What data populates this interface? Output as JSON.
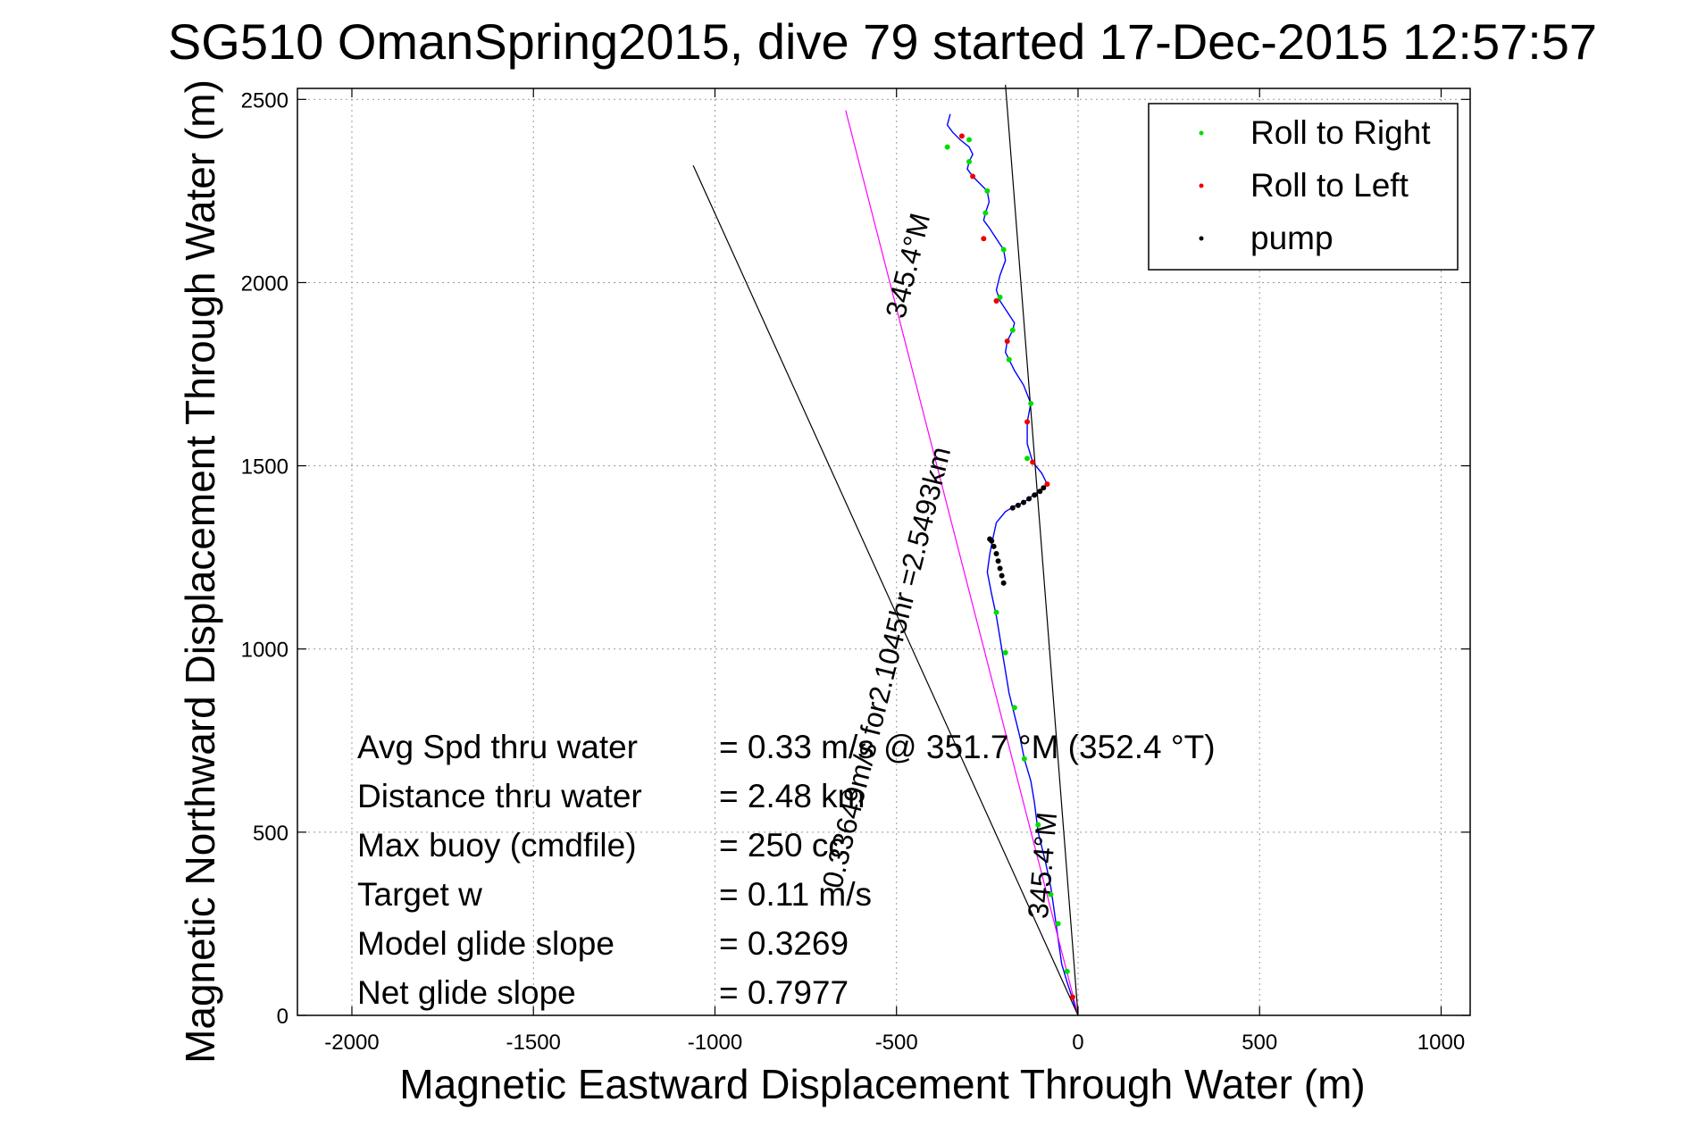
{
  "chart_data": {
    "type": "line",
    "title": "SG510 OmanSpring2015, dive 79 started 17-Dec-2015 12:57:57",
    "xlabel": "Magnetic Eastward Displacement Through Water (m)",
    "ylabel": "Magnetic Northward Displacement Through Water (m)",
    "xlim": [
      -2150,
      1080
    ],
    "ylim": [
      0,
      2530
    ],
    "xticks": [
      -2000,
      -1500,
      -1000,
      -500,
      0,
      500,
      1000
    ],
    "yticks": [
      0,
      500,
      1000,
      1500,
      2000,
      2500
    ],
    "xtick_labels": [
      "-2000",
      "-1500",
      "-1000",
      "-500",
      "0",
      "500",
      "1000"
    ],
    "ytick_labels": [
      "0",
      "500",
      "1000",
      "1500",
      "2000",
      "2500"
    ],
    "grid": true,
    "legend_position": "top-right",
    "legend": [
      {
        "label": "Roll to Right",
        "color": "#00dd00"
      },
      {
        "label": "Roll to Left",
        "color": "#ee0000"
      },
      {
        "label": "pump",
        "color": "#000000"
      }
    ],
    "series": [
      {
        "name": "",
        "color": "#0000ff",
        "x": [
          0,
          -15,
          -30,
          -45,
          -55,
          -65,
          -75,
          -90,
          -110,
          -120,
          -130,
          -148,
          -160,
          -175,
          -190,
          -200,
          -210,
          -225,
          -238,
          -250,
          -243,
          -235,
          -225,
          -200,
          -175,
          -150,
          -130,
          -110,
          -95,
          -85,
          -100,
          -125,
          -140,
          -140,
          -130,
          -150,
          -175,
          -190,
          -200,
          -195,
          -180,
          -175,
          -195,
          -215,
          -225,
          -215,
          -200,
          -205,
          -225,
          -245,
          -260,
          -255,
          -245,
          -250,
          -270,
          -290,
          -305,
          -300,
          -290,
          -300,
          -325,
          -345,
          -360,
          -352
        ],
        "y": [
          0,
          45,
          90,
          140,
          210,
          280,
          350,
          420,
          500,
          580,
          640,
          700,
          760,
          820,
          880,
          940,
          1000,
          1090,
          1150,
          1210,
          1260,
          1300,
          1345,
          1375,
          1390,
          1400,
          1415,
          1430,
          1440,
          1450,
          1480,
          1510,
          1560,
          1620,
          1670,
          1720,
          1760,
          1790,
          1810,
          1840,
          1870,
          1890,
          1920,
          1950,
          1980,
          2020,
          2060,
          2090,
          2120,
          2150,
          2170,
          2190,
          2220,
          2250,
          2270,
          2290,
          2310,
          2330,
          2350,
          2370,
          2390,
          2410,
          2430,
          2460
        ]
      },
      {
        "name": "",
        "color": "#ff00ff",
        "x": [
          0,
          -640
        ],
        "y": [
          0,
          2470
        ]
      },
      {
        "name": "",
        "color": "#000000",
        "x": [
          0,
          -1060
        ],
        "y": [
          0,
          2320
        ]
      },
      {
        "name": "",
        "color": "#000000",
        "x": [
          0,
          -200
        ],
        "y": [
          0,
          2540
        ]
      }
    ],
    "markers": {
      "roll_right": {
        "x": [
          -30,
          -55,
          -75,
          -110,
          -148,
          -175,
          -200,
          -225,
          -243,
          -140,
          -130,
          -190,
          -180,
          -215,
          -205,
          -255,
          -250,
          -300,
          -300,
          -360
        ],
        "y": [
          120,
          250,
          330,
          520,
          700,
          840,
          990,
          1100,
          1300,
          1520,
          1670,
          1790,
          1870,
          1960,
          2090,
          2190,
          2250,
          2330,
          2390,
          2370
        ]
      },
      "roll_left": {
        "x": [
          -15,
          -85,
          -125,
          -140,
          -195,
          -225,
          -260,
          -290,
          -320
        ],
        "y": [
          50,
          1450,
          1510,
          1620,
          1840,
          1950,
          2120,
          2290,
          2400
        ]
      },
      "pump": {
        "x": [
          -205,
          -210,
          -215,
          -220,
          -225,
          -232,
          -238,
          -243,
          -180,
          -165,
          -150,
          -135,
          -120,
          -105,
          -95
        ],
        "y": [
          1180,
          1200,
          1220,
          1240,
          1260,
          1280,
          1295,
          1300,
          1385,
          1392,
          1400,
          1410,
          1420,
          1430,
          1440
        ]
      }
    },
    "annotations": {
      "heading_upper": "345.4°M",
      "transit": "0.33649m/s for2.1045hr =2.5493km",
      "heading_lower": "345.4°M",
      "stats": [
        {
          "label": "Avg Spd thru water",
          "value": "=  0.33 m/s @ 351.7 °M (352.4 °T)"
        },
        {
          "label": "Distance thru water",
          "value": "=  2.48 km"
        },
        {
          "label": "Max buoy (cmdfile)",
          "value": "= 250 cc"
        },
        {
          "label": "Target w",
          "value": "= 0.11 m/s"
        },
        {
          "label": "Model glide slope",
          "value": "= 0.3269"
        },
        {
          "label": "Net glide slope",
          "value": "= 0.7977"
        }
      ]
    }
  }
}
